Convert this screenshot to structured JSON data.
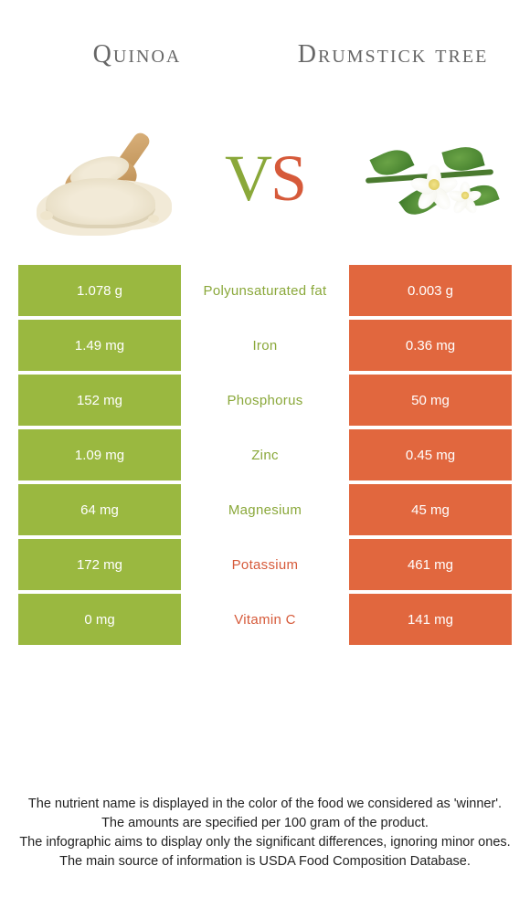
{
  "colors": {
    "left": "#9ab840",
    "right": "#e1673e",
    "left_text": "#8aa83a",
    "right_text": "#d65a3a",
    "white": "#ffffff"
  },
  "titles": {
    "left": "Quinoa",
    "right": "Drumstick tree"
  },
  "vs": {
    "v": "V",
    "s": "S"
  },
  "rows": [
    {
      "nutrient": "Polyunsaturated fat",
      "left": "1.078 g",
      "right": "0.003 g",
      "winner": "left"
    },
    {
      "nutrient": "Iron",
      "left": "1.49 mg",
      "right": "0.36 mg",
      "winner": "left"
    },
    {
      "nutrient": "Phosphorus",
      "left": "152 mg",
      "right": "50 mg",
      "winner": "left"
    },
    {
      "nutrient": "Zinc",
      "left": "1.09 mg",
      "right": "0.45 mg",
      "winner": "left"
    },
    {
      "nutrient": "Magnesium",
      "left": "64 mg",
      "right": "45 mg",
      "winner": "left"
    },
    {
      "nutrient": "Potassium",
      "left": "172 mg",
      "right": "461 mg",
      "winner": "right"
    },
    {
      "nutrient": "Vitamin C",
      "left": "0 mg",
      "right": "141 mg",
      "winner": "right"
    }
  ],
  "footer": {
    "l1": "The nutrient name is displayed in the color of the food we considered as 'winner'.",
    "l2": "The amounts are specified per 100 gram of the product.",
    "l3": "The infographic aims to display only the significant differences, ignoring minor ones.",
    "l4": "The main source of information is USDA Food Composition Database."
  }
}
